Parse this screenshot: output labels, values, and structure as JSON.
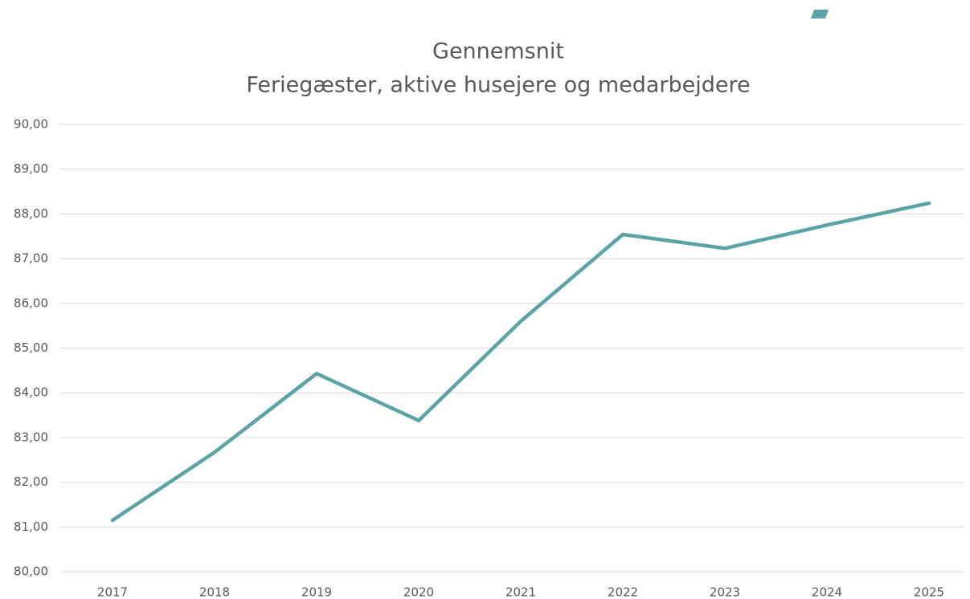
{
  "chart_data": {
    "type": "line",
    "title": "Gennemsnit",
    "subtitle": "Feriegæster, aktive husejere og medarbejdere",
    "categories": [
      "2017",
      "2018",
      "2019",
      "2020",
      "2021",
      "2022",
      "2023",
      "2024",
      "2025"
    ],
    "series": [
      {
        "name": "Gennemsnit",
        "color": "#5ba3a4",
        "values": [
          81.15,
          82.67,
          84.43,
          83.38,
          85.6,
          87.54,
          87.23,
          87.75,
          88.24
        ]
      }
    ],
    "ylim": [
      80,
      90
    ],
    "yticks": [
      {
        "value": 80,
        "label": "80,00"
      },
      {
        "value": 81,
        "label": "81,00"
      },
      {
        "value": 82,
        "label": "82,00"
      },
      {
        "value": 83,
        "label": "83,00"
      },
      {
        "value": 84,
        "label": "84,00"
      },
      {
        "value": 85,
        "label": "85,00"
      },
      {
        "value": 86,
        "label": "86,00"
      },
      {
        "value": 87,
        "label": "87,00"
      },
      {
        "value": 88,
        "label": "88,00"
      },
      {
        "value": 89,
        "label": "89,00"
      },
      {
        "value": 90,
        "label": "90,00"
      }
    ],
    "grid": true
  }
}
